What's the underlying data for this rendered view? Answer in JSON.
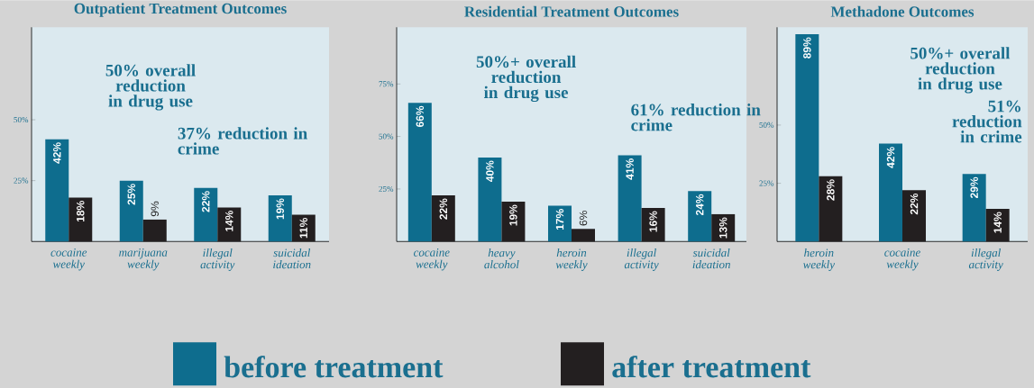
{
  "chart_data": [
    {
      "type": "bar",
      "title": "Outpatient Treatment Outcomes",
      "categories": [
        "cocaine weekly",
        "marijuana weekly",
        "illegal activity",
        "suicidal ideation"
      ],
      "series": [
        {
          "name": "before treatment",
          "color": "#0e6d8e",
          "values": [
            42,
            25,
            22,
            19
          ],
          "value_labels": [
            "42%",
            "25%",
            "22%",
            "19%"
          ]
        },
        {
          "name": "after treatment",
          "color": "#231f20",
          "values": [
            18,
            9,
            14,
            11
          ],
          "value_labels": [
            "18%",
            "9%",
            "14%",
            "11%"
          ]
        }
      ],
      "ylim": [
        0,
        88
      ],
      "yticks": [
        {
          "value": 25,
          "label": "25%"
        },
        {
          "value": 50,
          "label": "50%"
        }
      ],
      "annotations": [
        "50% overall reduction in drug use",
        "37% reduction in crime"
      ],
      "legend": "bottom"
    },
    {
      "type": "bar",
      "title": "Residential Treatment Outcomes",
      "categories": [
        "cocaine weekly",
        "heavy alcohol",
        "heroin weekly",
        "illegal activity",
        "suicidal ideation"
      ],
      "series": [
        {
          "color": "#0e6d8e",
          "values": [
            66,
            40,
            17,
            41,
            24
          ],
          "value_labels": [
            "66%",
            "40%",
            "17%",
            "41%",
            "24%"
          ]
        },
        {
          "color": "#231f20",
          "values": [
            22,
            19,
            6,
            16,
            13
          ],
          "value_labels": [
            "22%",
            "19%",
            "6%",
            "16%",
            "13%"
          ]
        }
      ],
      "ylim": [
        0,
        102
      ],
      "yticks": [
        {
          "value": 25,
          "label": "25%"
        },
        {
          "value": 50,
          "label": "50%"
        },
        {
          "value": 75,
          "label": "75%"
        }
      ],
      "annotations": [
        "50%+ overall reduction in drug use",
        "61% reduction in crime"
      ]
    },
    {
      "type": "bar",
      "title": "Methadone Outcomes",
      "categories": [
        "heroin weekly",
        "cocaine weekly",
        "illegal activity"
      ],
      "series": [
        {
          "color": "#0e6d8e",
          "values": [
            89,
            42,
            29
          ],
          "value_labels": [
            "89%",
            "42%",
            "29%"
          ]
        },
        {
          "color": "#231f20",
          "values": [
            28,
            22,
            14
          ],
          "value_labels": [
            "28%",
            "22%",
            "14%"
          ]
        }
      ],
      "ylim": [
        0,
        92
      ],
      "yticks": [
        {
          "value": 25,
          "label": "25%"
        },
        {
          "value": 50,
          "label": "50%"
        }
      ],
      "annotations": [
        "50%+ overall reduction in drug use",
        "51% reduction in crime"
      ]
    }
  ]
}
